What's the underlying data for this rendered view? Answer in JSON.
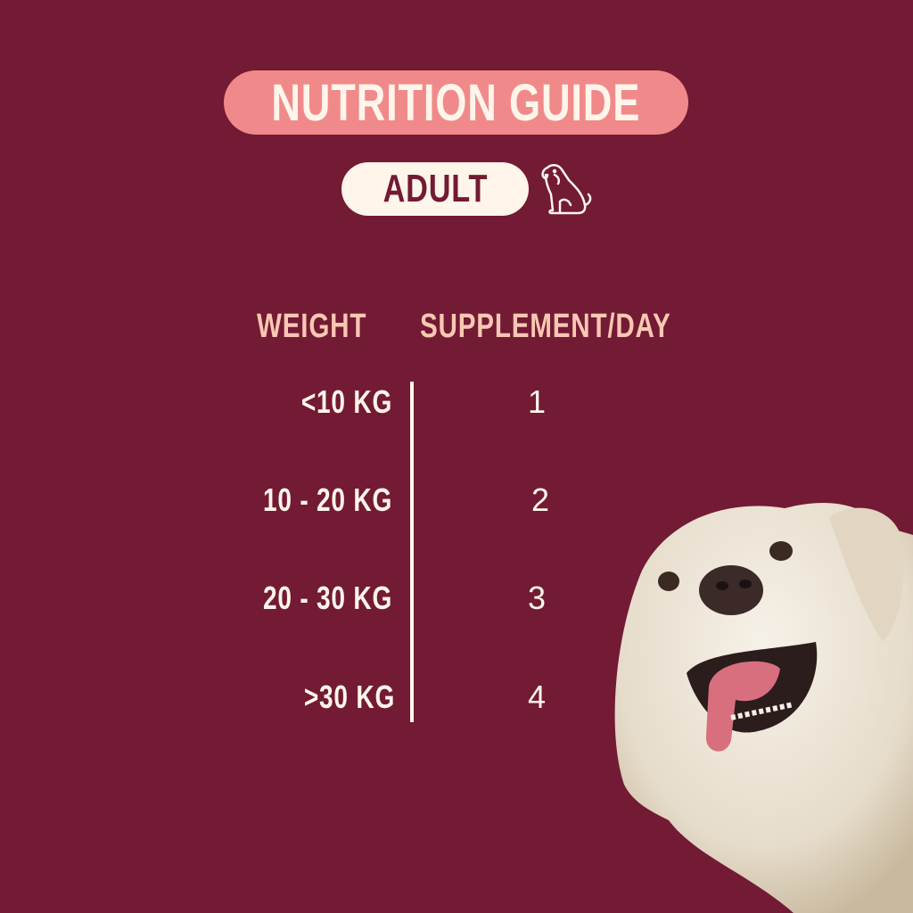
{
  "title": "NUTRITION GUIDE",
  "badge": "ADULT",
  "badge_icon": "sitting-dog-icon",
  "colors": {
    "background": "#731a34",
    "title_pill": "#f08a8a",
    "cream": "#fff5ea",
    "header_text": "#f9c7b3"
  },
  "table": {
    "headers": {
      "weight": "WEIGHT",
      "supplement": "SUPPLEMENT/DAY"
    },
    "rows": [
      {
        "weight": "<10 KG",
        "supplement": "1"
      },
      {
        "weight": "10 - 20 KG",
        "supplement": "2"
      },
      {
        "weight": "20 - 30 KG",
        "supplement": "3"
      },
      {
        "weight": ">30 KG",
        "supplement": "4"
      }
    ]
  },
  "photo": "golden-retriever-photo"
}
